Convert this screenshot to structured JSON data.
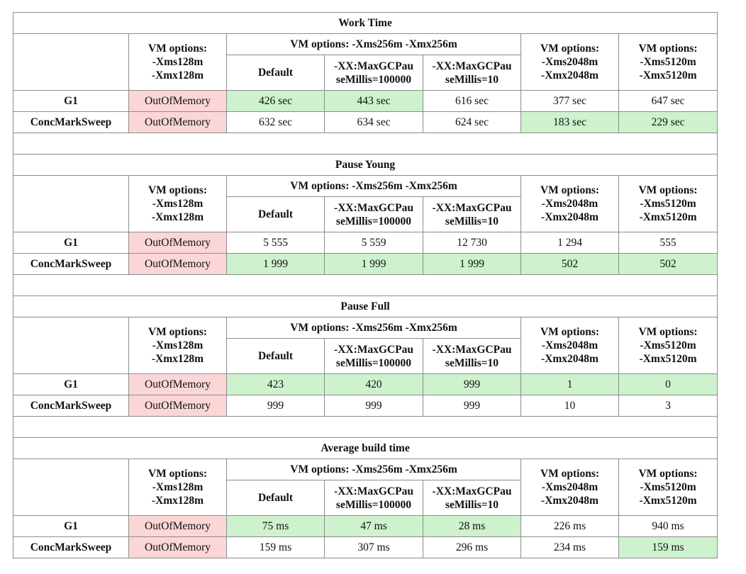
{
  "header_labels": {
    "vm128": [
      "VM options:",
      "-Xms128m",
      "-Xmx128m"
    ],
    "vm256": "VM options: -Xms256m -Xmx256m",
    "vm2048": [
      "VM options:",
      "-Xms2048m",
      "-Xmx2048m"
    ],
    "vm5120": [
      "VM options:",
      "-Xms5120m",
      "-Xmx5120m"
    ],
    "default": "Default",
    "pause100000": [
      "-XX:MaxGCPau",
      "seMillis=100000"
    ],
    "pause10": [
      "-XX:MaxGCPau",
      "seMillis=10"
    ]
  },
  "sections": [
    {
      "title": "Work Time",
      "rows": [
        {
          "label": "G1",
          "cells": [
            "OutOfMemory",
            "426 sec",
            "443 sec",
            "616 sec",
            "377 sec",
            "647 sec"
          ],
          "highlight": [
            "err",
            "hl",
            "hl",
            "",
            "",
            ""
          ]
        },
        {
          "label": "ConcMarkSweep",
          "cells": [
            "OutOfMemory",
            "632 sec",
            "634 sec",
            "624 sec",
            "183 sec",
            "229 sec"
          ],
          "highlight": [
            "err",
            "",
            "",
            "",
            "hl",
            "hl"
          ]
        }
      ]
    },
    {
      "title": "Pause Young",
      "rows": [
        {
          "label": "G1",
          "cells": [
            "OutOfMemory",
            "5 555",
            "5 559",
            "12 730",
            "1 294",
            "555"
          ],
          "highlight": [
            "err",
            "",
            "",
            "",
            "",
            ""
          ]
        },
        {
          "label": "ConcMarkSweep",
          "cells": [
            "OutOfMemory",
            "1 999",
            "1 999",
            "1 999",
            "502",
            "502"
          ],
          "highlight": [
            "err",
            "hl",
            "hl",
            "hl",
            "hl",
            "hl"
          ]
        }
      ]
    },
    {
      "title": "Pause Full",
      "rows": [
        {
          "label": "G1",
          "cells": [
            "OutOfMemory",
            "423",
            "420",
            "999",
            "1",
            "0"
          ],
          "highlight": [
            "err",
            "hl",
            "hl",
            "hl",
            "hl",
            "hl"
          ]
        },
        {
          "label": "ConcMarkSweep",
          "cells": [
            "OutOfMemory",
            "999",
            "999",
            "999",
            "10",
            "3"
          ],
          "highlight": [
            "err",
            "",
            "",
            "",
            "",
            ""
          ]
        }
      ]
    },
    {
      "title": "Average build time",
      "rows": [
        {
          "label": "G1",
          "cells": [
            "OutOfMemory",
            "75 ms",
            "47 ms",
            "28 ms",
            "226 ms",
            "940 ms"
          ],
          "highlight": [
            "err",
            "hl",
            "hl",
            "hl",
            "",
            ""
          ]
        },
        {
          "label": "ConcMarkSweep",
          "cells": [
            "OutOfMemory",
            "159 ms",
            "307 ms",
            "296 ms",
            "234 ms",
            "159 ms"
          ],
          "highlight": [
            "err",
            "",
            "",
            "",
            "",
            "hl"
          ]
        }
      ]
    }
  ]
}
